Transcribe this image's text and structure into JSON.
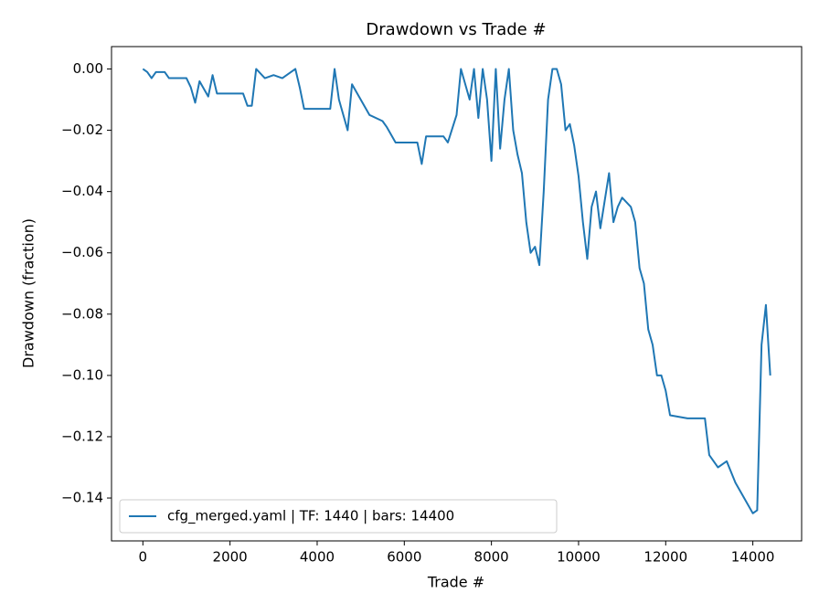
{
  "chart_data": {
    "type": "line",
    "title": "Drawdown vs Trade #",
    "xlabel": "Trade #",
    "ylabel": "Drawdown (fraction)",
    "x": [
      0,
      100,
      200,
      300,
      500,
      600,
      1000,
      1100,
      1200,
      1300,
      1500,
      1600,
      1700,
      2000,
      2300,
      2400,
      2500,
      2600,
      2800,
      3000,
      3200,
      3500,
      3600,
      3700,
      4300,
      4400,
      4500,
      4700,
      4800,
      5000,
      5200,
      5500,
      5600,
      5800,
      6300,
      6400,
      6500,
      6900,
      7000,
      7200,
      7300,
      7500,
      7600,
      7700,
      7800,
      7900,
      8000,
      8100,
      8200,
      8300,
      8400,
      8500,
      8600,
      8700,
      8800,
      8900,
      9000,
      9100,
      9200,
      9300,
      9400,
      9500,
      9600,
      9700,
      9800,
      9900,
      10000,
      10100,
      10200,
      10300,
      10400,
      10500,
      10600,
      10700,
      10800,
      10900,
      11000,
      11200,
      11300,
      11400,
      11500,
      11600,
      11700,
      11800,
      11900,
      12000,
      12100,
      12500,
      12900,
      13000,
      13200,
      13400,
      13600,
      13800,
      14000,
      14100,
      14200,
      14300,
      14400
    ],
    "series": [
      {
        "name": "cfg_merged.yaml | TF: 1440 | bars: 14400",
        "color": "#1f77b4",
        "values": [
          0,
          -0.001,
          -0.003,
          -0.001,
          -0.001,
          -0.003,
          -0.003,
          -0.006,
          -0.011,
          -0.004,
          -0.009,
          -0.002,
          -0.008,
          -0.008,
          -0.008,
          -0.012,
          -0.012,
          0,
          -0.003,
          -0.002,
          -0.003,
          0,
          -0.006,
          -0.013,
          -0.013,
          0,
          -0.01,
          -0.02,
          -0.005,
          -0.01,
          -0.015,
          -0.017,
          -0.019,
          -0.024,
          -0.024,
          -0.031,
          -0.022,
          -0.022,
          -0.024,
          -0.015,
          0,
          -0.01,
          0,
          -0.016,
          0,
          -0.01,
          -0.03,
          0,
          -0.026,
          -0.01,
          0,
          -0.02,
          -0.028,
          -0.034,
          -0.05,
          -0.06,
          -0.058,
          -0.064,
          -0.04,
          -0.01,
          0,
          0,
          -0.005,
          -0.02,
          -0.018,
          -0.025,
          -0.035,
          -0.05,
          -0.062,
          -0.045,
          -0.04,
          -0.052,
          -0.043,
          -0.034,
          -0.05,
          -0.045,
          -0.042,
          -0.045,
          -0.05,
          -0.065,
          -0.07,
          -0.085,
          -0.09,
          -0.1,
          -0.1,
          -0.105,
          -0.113,
          -0.114,
          -0.114,
          -0.126,
          -0.13,
          -0.128,
          -0.135,
          -0.14,
          -0.145,
          -0.144,
          -0.09,
          -0.077,
          -0.1
        ]
      }
    ],
    "xlim": [
      -720,
      15120
    ],
    "xticks": [
      0,
      2000,
      4000,
      6000,
      8000,
      10000,
      12000,
      14000
    ],
    "ylim": [
      -0.154,
      0.0073
    ],
    "yticks": [
      {
        "value": 0,
        "label": "0.00"
      },
      {
        "value": -0.02,
        "label": "−0.02"
      },
      {
        "value": -0.04,
        "label": "−0.04"
      },
      {
        "value": -0.06,
        "label": "−0.06"
      },
      {
        "value": -0.08,
        "label": "−0.08"
      },
      {
        "value": -0.1,
        "label": "−0.10"
      },
      {
        "value": -0.12,
        "label": "−0.12"
      },
      {
        "value": -0.14,
        "label": "−0.14"
      }
    ],
    "grid": false,
    "legend": "lower left"
  }
}
